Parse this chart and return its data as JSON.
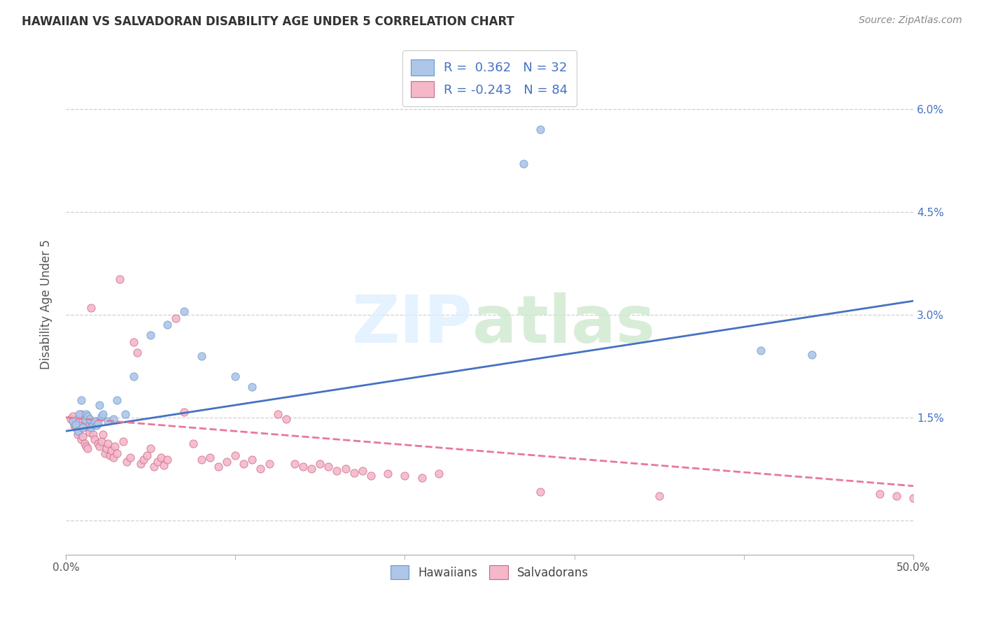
{
  "title": "HAWAIIAN VS SALVADORAN DISABILITY AGE UNDER 5 CORRELATION CHART",
  "source": "Source: ZipAtlas.com",
  "ylabel": "Disability Age Under 5",
  "xlim": [
    0.0,
    0.5
  ],
  "ylim": [
    -0.005,
    0.068
  ],
  "hawaiian_color": "#aec6e8",
  "salvadoran_color": "#f4b8c8",
  "trendline_hawaiian_color": "#4472c4",
  "trendline_salvadoran_color": "#e8789a",
  "watermark_zip_color": "#dce8f5",
  "watermark_atlas_color": "#d0e8c8",
  "background_color": "#ffffff",
  "grid_color": "#d0d0d0",
  "hawaiian_points": [
    [
      0.004,
      0.0145
    ],
    [
      0.006,
      0.014
    ],
    [
      0.007,
      0.013
    ],
    [
      0.008,
      0.0155
    ],
    [
      0.009,
      0.0175
    ],
    [
      0.01,
      0.0135
    ],
    [
      0.011,
      0.0148
    ],
    [
      0.012,
      0.0155
    ],
    [
      0.013,
      0.0152
    ],
    [
      0.014,
      0.0148
    ],
    [
      0.015,
      0.0135
    ],
    [
      0.016,
      0.014
    ],
    [
      0.017,
      0.0145
    ],
    [
      0.018,
      0.0138
    ],
    [
      0.019,
      0.0142
    ],
    [
      0.02,
      0.0168
    ],
    [
      0.021,
      0.0152
    ],
    [
      0.022,
      0.0155
    ],
    [
      0.025,
      0.0145
    ],
    [
      0.028,
      0.0148
    ],
    [
      0.03,
      0.0175
    ],
    [
      0.035,
      0.0155
    ],
    [
      0.04,
      0.021
    ],
    [
      0.05,
      0.027
    ],
    [
      0.06,
      0.0285
    ],
    [
      0.07,
      0.0305
    ],
    [
      0.08,
      0.024
    ],
    [
      0.1,
      0.021
    ],
    [
      0.11,
      0.0195
    ],
    [
      0.27,
      0.052
    ],
    [
      0.28,
      0.057
    ],
    [
      0.41,
      0.0248
    ],
    [
      0.44,
      0.0242
    ]
  ],
  "salvadoran_points": [
    [
      0.003,
      0.0148
    ],
    [
      0.004,
      0.0152
    ],
    [
      0.005,
      0.0145
    ],
    [
      0.005,
      0.0138
    ],
    [
      0.006,
      0.0142
    ],
    [
      0.006,
      0.0135
    ],
    [
      0.007,
      0.0148
    ],
    [
      0.007,
      0.0125
    ],
    [
      0.008,
      0.0145
    ],
    [
      0.008,
      0.013
    ],
    [
      0.009,
      0.0155
    ],
    [
      0.009,
      0.0118
    ],
    [
      0.01,
      0.0148
    ],
    [
      0.01,
      0.0122
    ],
    [
      0.011,
      0.0138
    ],
    [
      0.011,
      0.0112
    ],
    [
      0.012,
      0.0145
    ],
    [
      0.012,
      0.0108
    ],
    [
      0.013,
      0.0135
    ],
    [
      0.013,
      0.0105
    ],
    [
      0.014,
      0.0128
    ],
    [
      0.015,
      0.031
    ],
    [
      0.016,
      0.0125
    ],
    [
      0.017,
      0.0118
    ],
    [
      0.018,
      0.0145
    ],
    [
      0.019,
      0.0112
    ],
    [
      0.02,
      0.0108
    ],
    [
      0.021,
      0.0115
    ],
    [
      0.022,
      0.0125
    ],
    [
      0.023,
      0.0098
    ],
    [
      0.024,
      0.0105
    ],
    [
      0.025,
      0.0112
    ],
    [
      0.026,
      0.0095
    ],
    [
      0.027,
      0.0102
    ],
    [
      0.028,
      0.0092
    ],
    [
      0.029,
      0.0108
    ],
    [
      0.03,
      0.0098
    ],
    [
      0.032,
      0.0352
    ],
    [
      0.034,
      0.0115
    ],
    [
      0.036,
      0.0085
    ],
    [
      0.038,
      0.0092
    ],
    [
      0.04,
      0.026
    ],
    [
      0.042,
      0.0245
    ],
    [
      0.044,
      0.0082
    ],
    [
      0.046,
      0.0088
    ],
    [
      0.048,
      0.0095
    ],
    [
      0.05,
      0.0105
    ],
    [
      0.052,
      0.0078
    ],
    [
      0.054,
      0.0085
    ],
    [
      0.056,
      0.0092
    ],
    [
      0.058,
      0.008
    ],
    [
      0.06,
      0.0088
    ],
    [
      0.065,
      0.0295
    ],
    [
      0.07,
      0.0158
    ],
    [
      0.075,
      0.0112
    ],
    [
      0.08,
      0.0088
    ],
    [
      0.085,
      0.0092
    ],
    [
      0.09,
      0.0078
    ],
    [
      0.095,
      0.0085
    ],
    [
      0.1,
      0.0095
    ],
    [
      0.105,
      0.0082
    ],
    [
      0.11,
      0.0088
    ],
    [
      0.115,
      0.0075
    ],
    [
      0.12,
      0.0082
    ],
    [
      0.125,
      0.0155
    ],
    [
      0.13,
      0.0148
    ],
    [
      0.135,
      0.0082
    ],
    [
      0.14,
      0.0078
    ],
    [
      0.145,
      0.0075
    ],
    [
      0.15,
      0.0082
    ],
    [
      0.155,
      0.0078
    ],
    [
      0.16,
      0.0072
    ],
    [
      0.165,
      0.0075
    ],
    [
      0.17,
      0.0069
    ],
    [
      0.175,
      0.0072
    ],
    [
      0.18,
      0.0065
    ],
    [
      0.19,
      0.0068
    ],
    [
      0.2,
      0.0065
    ],
    [
      0.21,
      0.0062
    ],
    [
      0.22,
      0.0068
    ],
    [
      0.28,
      0.0042
    ],
    [
      0.35,
      0.0035
    ],
    [
      0.48,
      0.0038
    ],
    [
      0.49,
      0.0035
    ],
    [
      0.5,
      0.0032
    ]
  ]
}
